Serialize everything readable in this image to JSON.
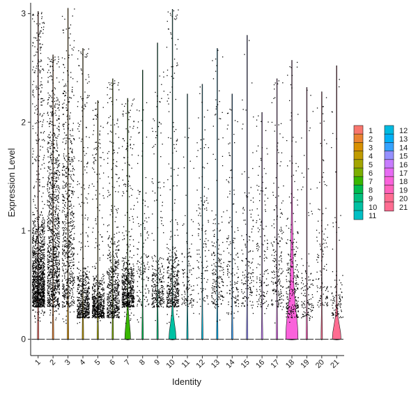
{
  "chart_data": {
    "type": "violin",
    "title": "",
    "xlabel": "Identity",
    "ylabel": "Expression Level",
    "ylim": [
      -0.15,
      3.1
    ],
    "yticks": [
      0,
      1,
      2,
      3
    ],
    "grid": false,
    "legend_position": "right",
    "categories": [
      "1",
      "2",
      "3",
      "4",
      "5",
      "6",
      "7",
      "8",
      "9",
      "10",
      "11",
      "12",
      "13",
      "14",
      "15",
      "16",
      "17",
      "18",
      "19",
      "20",
      "21"
    ],
    "series": [
      {
        "name": "1",
        "color": "#F8766D",
        "max": 3.02,
        "violin_width": 0.06,
        "points": 1400,
        "core": [
          0.3,
          1.2
        ]
      },
      {
        "name": "2",
        "color": "#EA8331",
        "max": 2.62,
        "violin_width": 0.06,
        "points": 1100,
        "core": [
          0.3,
          2.4
        ]
      },
      {
        "name": "3",
        "color": "#D89000",
        "max": 3.05,
        "violin_width": 0.06,
        "points": 700,
        "core": [
          0.3,
          2.5
        ]
      },
      {
        "name": "4",
        "color": "#C09B00",
        "max": 2.68,
        "violin_width": 0.06,
        "points": 600,
        "core": [
          0.2,
          0.7
        ]
      },
      {
        "name": "5",
        "color": "#A3A500",
        "max": 2.2,
        "violin_width": 0.06,
        "points": 600,
        "core": [
          0.2,
          0.6
        ]
      },
      {
        "name": "6",
        "color": "#7CAE00",
        "max": 2.4,
        "violin_width": 0.06,
        "points": 600,
        "core": [
          0.2,
          1.0
        ]
      },
      {
        "name": "7",
        "color": "#39B600",
        "max": 2.22,
        "violin_width": 0.35,
        "points": 650,
        "core": [
          0.3,
          0.8
        ]
      },
      {
        "name": "8",
        "color": "#00BB4E",
        "max": 2.48,
        "violin_width": 0.06,
        "points": 150,
        "core": [
          0.3,
          1.5
        ]
      },
      {
        "name": "9",
        "color": "#00BF7D",
        "max": 2.73,
        "violin_width": 0.06,
        "points": 300,
        "core": [
          0.3,
          0.8
        ]
      },
      {
        "name": "10",
        "color": "#00C1A3",
        "max": 3.04,
        "violin_width": 0.45,
        "points": 450,
        "core": [
          0.3,
          0.9
        ]
      },
      {
        "name": "11",
        "color": "#00BFC4",
        "max": 2.26,
        "violin_width": 0.06,
        "points": 120,
        "core": [
          0.3,
          1.0
        ]
      },
      {
        "name": "12",
        "color": "#00BAE0",
        "max": 2.35,
        "violin_width": 0.06,
        "points": 120,
        "core": [
          0.3,
          2.2
        ]
      },
      {
        "name": "13",
        "color": "#00B0F6",
        "max": 2.68,
        "violin_width": 0.06,
        "points": 200,
        "core": [
          0.3,
          1.2
        ]
      },
      {
        "name": "14",
        "color": "#35A2FF",
        "max": 2.26,
        "violin_width": 0.06,
        "points": 150,
        "core": [
          0.3,
          1.6
        ]
      },
      {
        "name": "15",
        "color": "#9590FF",
        "max": 2.8,
        "violin_width": 0.06,
        "points": 150,
        "core": [
          0.3,
          1.5
        ]
      },
      {
        "name": "16",
        "color": "#C77CFF",
        "max": 2.09,
        "violin_width": 0.06,
        "points": 150,
        "core": [
          0.3,
          1.8
        ]
      },
      {
        "name": "17",
        "color": "#E76BF3",
        "max": 2.4,
        "violin_width": 0.06,
        "points": 200,
        "core": [
          0.3,
          1.4
        ]
      },
      {
        "name": "18",
        "color": "#FA62DB",
        "max": 2.57,
        "violin_width": 0.75,
        "points": 250,
        "core": [
          0.2,
          1.2
        ]
      },
      {
        "name": "19",
        "color": "#FF62BC",
        "max": 2.32,
        "violin_width": 0.06,
        "points": 120,
        "core": [
          0.2,
          0.8
        ]
      },
      {
        "name": "20",
        "color": "#FF6C91",
        "max": 2.28,
        "violin_width": 0.06,
        "points": 120,
        "core": [
          0.3,
          1.3
        ]
      },
      {
        "name": "21",
        "color": "#FF6C91",
        "max": 2.52,
        "violin_width": 0.55,
        "points": 100,
        "core": [
          0.2,
          0.7
        ]
      }
    ]
  }
}
